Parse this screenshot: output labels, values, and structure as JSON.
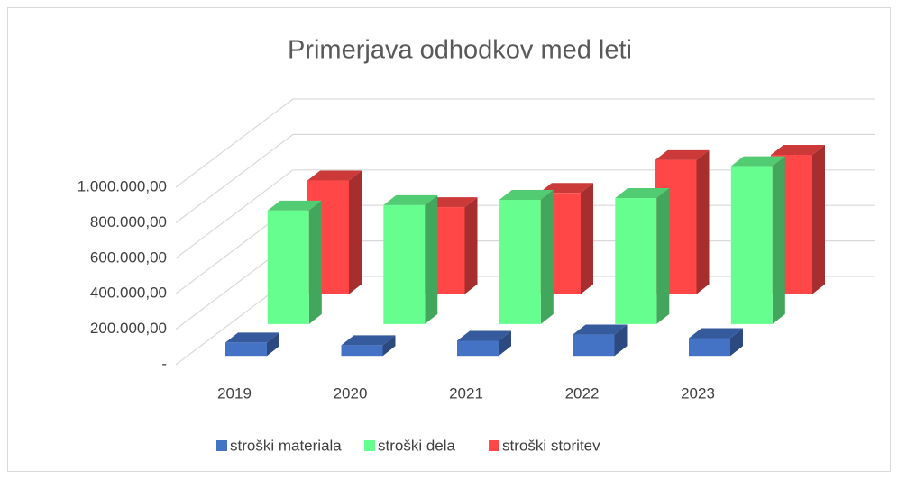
{
  "chart_data": {
    "type": "bar3d",
    "title": "Primerjava odhodkov med leti",
    "categories": [
      "2019",
      "2020",
      "2021",
      "2022",
      "2023"
    ],
    "series": [
      {
        "name": "stroški materiala",
        "color": "#4472c4",
        "values": [
          75000,
          60000,
          85000,
          120000,
          100000
        ]
      },
      {
        "name": "stroški dela",
        "color": "#66ff8f",
        "values": [
          640000,
          670000,
          700000,
          710000,
          890000
        ]
      },
      {
        "name": "stroški storitev",
        "color": "#ff4747",
        "values": [
          640000,
          490000,
          570000,
          755000,
          785000
        ]
      }
    ],
    "ylim": [
      0,
      1000000
    ],
    "yticks": [
      {
        "value": 0,
        "label": "-"
      },
      {
        "value": 200000,
        "label": "200.000,00"
      },
      {
        "value": 400000,
        "label": "400.000,00"
      },
      {
        "value": 600000,
        "label": "600.000,00"
      },
      {
        "value": 800000,
        "label": "800.000,00"
      },
      {
        "value": 1000000,
        "label": "1.000.000,00"
      }
    ],
    "grid": true,
    "legend": "bottom"
  }
}
